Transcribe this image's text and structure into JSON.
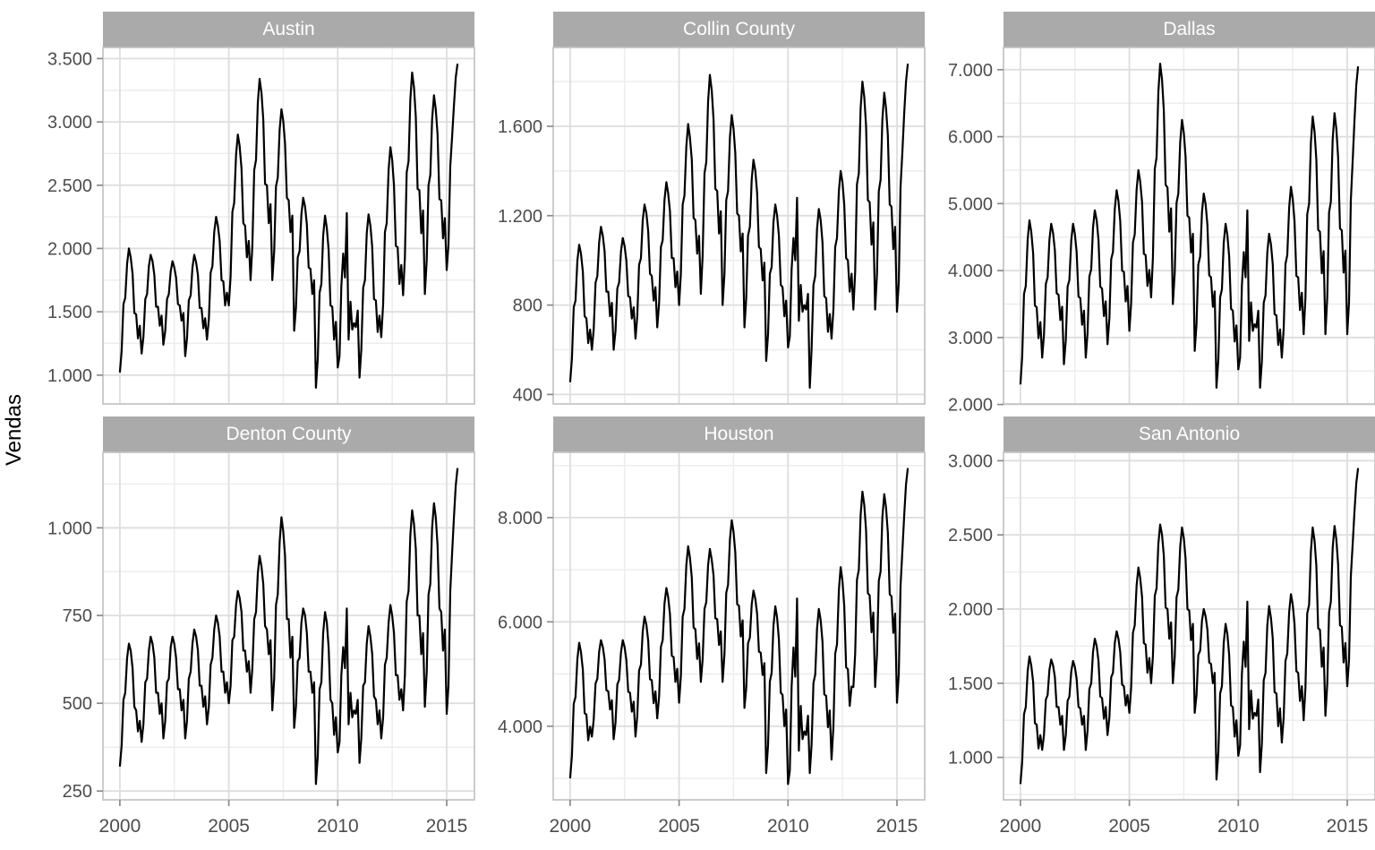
{
  "chart_data": {
    "type": "line",
    "ylabel": "Vendas",
    "line_color": "#000000",
    "x_start": 2000,
    "x_step_months": 1,
    "x_ticks": [
      2000,
      2005,
      2010,
      2015
    ],
    "x_minor_ticks": [
      2002.5,
      2007.5,
      2012.5
    ],
    "xlim": [
      1999.225,
      2016.275
    ],
    "grid": "on",
    "legend_position": "none",
    "facet_layout": {
      "rows": 2,
      "cols": 3,
      "scales": "free_y"
    },
    "series": [
      {
        "name": "Austin",
        "y_ticks": [
          1000,
          1500,
          2000,
          2500,
          3000,
          3500
        ],
        "values": [
          1020,
          1190,
          1560,
          1610,
          1880,
          2000,
          1930,
          1800,
          1490,
          1480,
          1290,
          1390,
          1170,
          1300,
          1600,
          1640,
          1860,
          1950,
          1900,
          1790,
          1540,
          1540,
          1390,
          1470,
          1240,
          1350,
          1600,
          1640,
          1820,
          1900,
          1850,
          1770,
          1560,
          1550,
          1430,
          1490,
          1150,
          1290,
          1590,
          1630,
          1850,
          1950,
          1890,
          1790,
          1530,
          1530,
          1370,
          1450,
          1280,
          1440,
          1810,
          1860,
          2130,
          2250,
          2180,
          2060,
          1750,
          1740,
          1550,
          1650,
          1550,
          1780,
          2290,
          2360,
          2740,
          2900,
          2810,
          2630,
          2200,
          2180,
          1930,
          2060,
          1750,
          2020,
          2620,
          2700,
          3150,
          3340,
          3230,
          3020,
          2510,
          2500,
          2200,
          2350,
          1750,
          1980,
          2490,
          2560,
          2940,
          3100,
          3010,
          2830,
          2400,
          2380,
          2130,
          2260,
          1350,
          1530,
          1930,
          1980,
          2270,
          2400,
          2330,
          2190,
          1850,
          1840,
          1640,
          1750,
          900,
          1130,
          1650,
          1720,
          2100,
          2260,
          2160,
          1990,
          1550,
          1540,
          1280,
          1420,
          1060,
          1150,
          1700,
          1960,
          1770,
          2280,
          1280,
          1580,
          1360,
          1410,
          1380,
          1510,
          980,
          1200,
          1690,
          1750,
          2120,
          2270,
          2180,
          2010,
          1600,
          1590,
          1340,
          1470,
          1300,
          1560,
          2130,
          2200,
          2620,
          2800,
          2700,
          2500,
          2020,
          2010,
          1720,
          1870,
          1630,
          1930,
          2600,
          2690,
          3180,
          3390,
          3270,
          3040,
          2470,
          2460,
          2120,
          2300,
          1640,
          1910,
          2500,
          2580,
          3020,
          3210,
          3100,
          2900,
          2390,
          2380,
          2080,
          2240,
          1830,
          2030,
          2650,
          2890,
          3130,
          3350,
          3460
        ]
      },
      {
        "name": "Collin County",
        "y_ticks": [
          400,
          800,
          1200,
          1600
        ],
        "values": [
          455,
          560,
          790,
          820,
          1000,
          1070,
          1030,
          950,
          750,
          740,
          630,
          690,
          600,
          690,
          900,
          930,
          1080,
          1150,
          1110,
          1040,
          860,
          860,
          750,
          810,
          600,
          685,
          875,
          900,
          1040,
          1100,
          1065,
          1000,
          840,
          835,
          740,
          790,
          650,
          750,
          980,
          1010,
          1180,
          1250,
          1210,
          1130,
          940,
          930,
          820,
          880,
          700,
          810,
          1060,
          1090,
          1270,
          1350,
          1300,
          1220,
          1010,
          1010,
          880,
          950,
          800,
          940,
          1250,
          1290,
          1510,
          1610,
          1550,
          1450,
          1190,
          1180,
          1030,
          1110,
          850,
          1020,
          1390,
          1440,
          1710,
          1830,
          1760,
          1630,
          1320,
          1310,
          1120,
          1220,
          800,
          940,
          1270,
          1310,
          1550,
          1650,
          1590,
          1480,
          1210,
          1200,
          1040,
          1120,
          700,
          830,
          1110,
          1150,
          1360,
          1450,
          1400,
          1300,
          1060,
          1050,
          910,
          990,
          550,
          670,
          940,
          970,
          1170,
          1250,
          1200,
          1110,
          890,
          880,
          750,
          820,
          610,
          660,
          960,
          1100,
          1000,
          1280,
          730,
          890,
          770,
          800,
          780,
          850,
          430,
          600,
          890,
          930,
          1140,
          1230,
          1180,
          1080,
          840,
          830,
          680,
          760,
          650,
          780,
          1060,
          1100,
          1310,
          1400,
          1350,
          1250,
          1010,
          1000,
          860,
          940,
          780,
          950,
          1340,
          1390,
          1680,
          1800,
          1730,
          1600,
          1270,
          1260,
          1070,
          1170,
          780,
          940,
          1310,
          1360,
          1630,
          1750,
          1680,
          1560,
          1250,
          1240,
          1050,
          1150,
          770,
          900,
          1330,
          1490,
          1660,
          1800,
          1880
        ]
      },
      {
        "name": "Dallas",
        "y_ticks": [
          2000,
          3000,
          4000,
          5000,
          6000,
          7000
        ],
        "values": [
          2300,
          2720,
          3650,
          3770,
          4460,
          4750,
          4580,
          4260,
          3480,
          3450,
          2990,
          3230,
          2700,
          3040,
          3800,
          3900,
          4460,
          4700,
          4560,
          4300,
          3660,
          3640,
          3260,
          3460,
          2600,
          2960,
          3760,
          3860,
          4450,
          4700,
          4550,
          4280,
          3610,
          3590,
          3190,
          3400,
          2700,
          3070,
          3910,
          4020,
          4640,
          4900,
          4750,
          4460,
          3760,
          3730,
          3320,
          3540,
          2900,
          3290,
          4170,
          4280,
          4920,
          5200,
          5040,
          4740,
          4000,
          3980,
          3540,
          3770,
          3100,
          3510,
          4420,
          4540,
          5210,
          5500,
          5330,
          5020,
          4250,
          4230,
          3770,
          4010,
          3600,
          4190,
          5520,
          5690,
          6670,
          7090,
          6850,
          6390,
          5280,
          5240,
          4580,
          4930,
          3500,
          3970,
          5010,
          5150,
          5920,
          6250,
          6060,
          5700,
          4820,
          4790,
          4270,
          4550,
          2800,
          3200,
          4090,
          4210,
          4870,
          5150,
          4990,
          4680,
          3930,
          3900,
          3460,
          3690,
          2250,
          2670,
          3600,
          3720,
          4410,
          4700,
          4530,
          4210,
          3430,
          3400,
          2940,
          3180,
          2525,
          2700,
          3775,
          4275,
          3900,
          4900,
          2950,
          3525,
          3100,
          3200,
          3150,
          3400,
          2250,
          2640,
          3520,
          3630,
          4270,
          4550,
          4390,
          4090,
          3350,
          3330,
          2890,
          3120,
          2700,
          3130,
          4100,
          4230,
          4940,
          5250,
          5070,
          4740,
          3920,
          3900,
          3410,
          3670,
          3050,
          3600,
          4840,
          5000,
          5910,
          6300,
          6070,
          5650,
          4610,
          4580,
          3960,
          4290,
          3050,
          3610,
          4870,
          5030,
          5950,
          6350,
          6120,
          5690,
          4630,
          4600,
          3970,
          4300,
          3050,
          3530,
          5050,
          5650,
          6250,
          6770,
          7050
        ]
      },
      {
        "name": "Denton County",
        "y_ticks": [
          250,
          500,
          750,
          1000
        ],
        "values": [
          320,
          380,
          510,
          530,
          630,
          670,
          650,
          600,
          490,
          480,
          420,
          450,
          390,
          440,
          560,
          570,
          650,
          690,
          670,
          630,
          530,
          530,
          470,
          500,
          400,
          450,
          560,
          570,
          660,
          690,
          670,
          630,
          540,
          540,
          480,
          510,
          400,
          450,
          570,
          590,
          670,
          710,
          690,
          650,
          550,
          550,
          490,
          520,
          440,
          490,
          610,
          630,
          710,
          750,
          730,
          690,
          590,
          590,
          530,
          560,
          500,
          550,
          680,
          690,
          780,
          820,
          800,
          760,
          650,
          650,
          590,
          620,
          530,
          600,
          740,
          760,
          870,
          920,
          890,
          840,
          720,
          710,
          640,
          680,
          480,
          570,
          780,
          810,
          960,
          1030,
          990,
          920,
          740,
          740,
          630,
          690,
          430,
          490,
          620,
          630,
          730,
          770,
          750,
          700,
          590,
          590,
          530,
          560,
          270,
          350,
          540,
          560,
          700,
          760,
          730,
          660,
          510,
          500,
          410,
          460,
          360,
          390,
          580,
          660,
          600,
          770,
          440,
          530,
          460,
          480,
          470,
          510,
          330,
          400,
          550,
          560,
          670,
          720,
          690,
          640,
          520,
          510,
          440,
          480,
          400,
          460,
          610,
          630,
          730,
          780,
          750,
          700,
          580,
          580,
          510,
          540,
          480,
          580,
          790,
          820,
          980,
          1050,
          1010,
          940,
          750,
          750,
          640,
          700,
          490,
          590,
          810,
          840,
          1000,
          1070,
          1030,
          950,
          770,
          760,
          650,
          710,
          470,
          550,
          820,
          930,
          1030,
          1120,
          1170
        ]
      },
      {
        "name": "Houston",
        "y_ticks": [
          4000,
          6000,
          8000
        ],
        "values": [
          3000,
          3440,
          4430,
          4560,
          5290,
          5600,
          5420,
          5080,
          4250,
          4220,
          3730,
          3990,
          3800,
          4120,
          4820,
          4910,
          5430,
          5650,
          5520,
          5280,
          4690,
          4670,
          4320,
          4500,
          3750,
          4070,
          4800,
          4890,
          5420,
          5650,
          5520,
          5270,
          4660,
          4640,
          4280,
          4470,
          3800,
          4190,
          5070,
          5180,
          5820,
          6100,
          5940,
          5640,
          4900,
          4880,
          4440,
          4670,
          4150,
          4575,
          5525,
          5650,
          6350,
          6650,
          6475,
          6150,
          5350,
          5325,
          4850,
          5100,
          4450,
          4960,
          6100,
          6250,
          7090,
          7450,
          7240,
          6850,
          5890,
          5860,
          5290,
          5590,
          4850,
          5280,
          6250,
          6380,
          7090,
          7400,
          7190,
          6890,
          6070,
          6050,
          5560,
          5820,
          4850,
          5380,
          6560,
          6710,
          7580,
          7950,
          7730,
          7330,
          6340,
          6310,
          5720,
          6030,
          4350,
          4730,
          5590,
          5700,
          6330,
          6600,
          6440,
          6150,
          5430,
          5410,
          4980,
          5210,
          3100,
          3640,
          4860,
          5020,
          5920,
          6300,
          6080,
          5660,
          4640,
          4600,
          4000,
          4320,
          2890,
          3150,
          4760,
          5510,
          4950,
          6450,
          3530,
          4390,
          3750,
          3900,
          3830,
          4200,
          3100,
          3640,
          4830,
          4990,
          5870,
          6250,
          6030,
          5620,
          4610,
          4580,
          3980,
          4300,
          3360,
          3990,
          5390,
          5570,
          6610,
          7050,
          6790,
          6310,
          5130,
          5090,
          4390,
          4760,
          4750,
          5390,
          6810,
          7000,
          8050,
          8500,
          8240,
          7750,
          6550,
          6510,
          5800,
          6180,
          4750,
          5380,
          6790,
          6970,
          8010,
          8450,
          8190,
          7710,
          6530,
          6490,
          5790,
          6160,
          4450,
          4990,
          6700,
          7380,
          8050,
          8640,
          8950
        ]
      },
      {
        "name": "San Antonio",
        "y_ticks": [
          1000,
          1500,
          2000,
          2500,
          3000
        ],
        "values": [
          820,
          970,
          1290,
          1340,
          1580,
          1680,
          1620,
          1510,
          1230,
          1220,
          1060,
          1150,
          1050,
          1150,
          1390,
          1420,
          1590,
          1660,
          1620,
          1540,
          1340,
          1340,
          1220,
          1280,
          1050,
          1150,
          1380,
          1410,
          1580,
          1650,
          1610,
          1530,
          1340,
          1330,
          1220,
          1280,
          1050,
          1180,
          1460,
          1500,
          1710,
          1800,
          1750,
          1650,
          1410,
          1400,
          1260,
          1340,
          1150,
          1270,
          1540,
          1570,
          1770,
          1850,
          1800,
          1710,
          1490,
          1480,
          1350,
          1420,
          1300,
          1470,
          1840,
          1890,
          2160,
          2280,
          2210,
          2080,
          1770,
          1760,
          1570,
          1670,
          1500,
          1680,
          2090,
          2140,
          2440,
          2570,
          2500,
          2360,
          2010,
          2000,
          1800,
          1910,
          1500,
          1680,
          2080,
          2130,
          2420,
          2550,
          2480,
          2340,
          2000,
          1990,
          1790,
          1900,
          1300,
          1420,
          1690,
          1720,
          1920,
          2000,
          1950,
          1860,
          1640,
          1630,
          1500,
          1570,
          850,
          1030,
          1430,
          1480,
          1770,
          1900,
          1830,
          1690,
          1350,
          1340,
          1140,
          1250,
          1010,
          1080,
          1560,
          1780,
          1610,
          2050,
          1190,
          1450,
          1260,
          1300,
          1280,
          1390,
          900,
          1090,
          1520,
          1570,
          1890,
          2020,
          1940,
          1800,
          1440,
          1430,
          1210,
          1330,
          1100,
          1270,
          1650,
          1700,
          1980,
          2100,
          2030,
          1900,
          1580,
          1570,
          1380,
          1480,
          1250,
          1470,
          1970,
          2030,
          2390,
          2550,
          2460,
          2290,
          1870,
          1860,
          1610,
          1740,
          1280,
          1500,
          1980,
          2050,
          2410,
          2560,
          2470,
          2300,
          1890,
          1880,
          1640,
          1770,
          1480,
          1660,
          2220,
          2440,
          2660,
          2850,
          2950
        ]
      }
    ],
    "style": {
      "strip_fill": "#aaaaaa",
      "strip_text_color": "#ffffff",
      "panel_background": "#ffffff",
      "panel_border": "#c4c4c4",
      "grid_major": "#dedede",
      "grid_minor": "#ededed",
      "axis_text_color": "#4d4d4d",
      "axis_tick_color": "#8a8a8a"
    }
  }
}
